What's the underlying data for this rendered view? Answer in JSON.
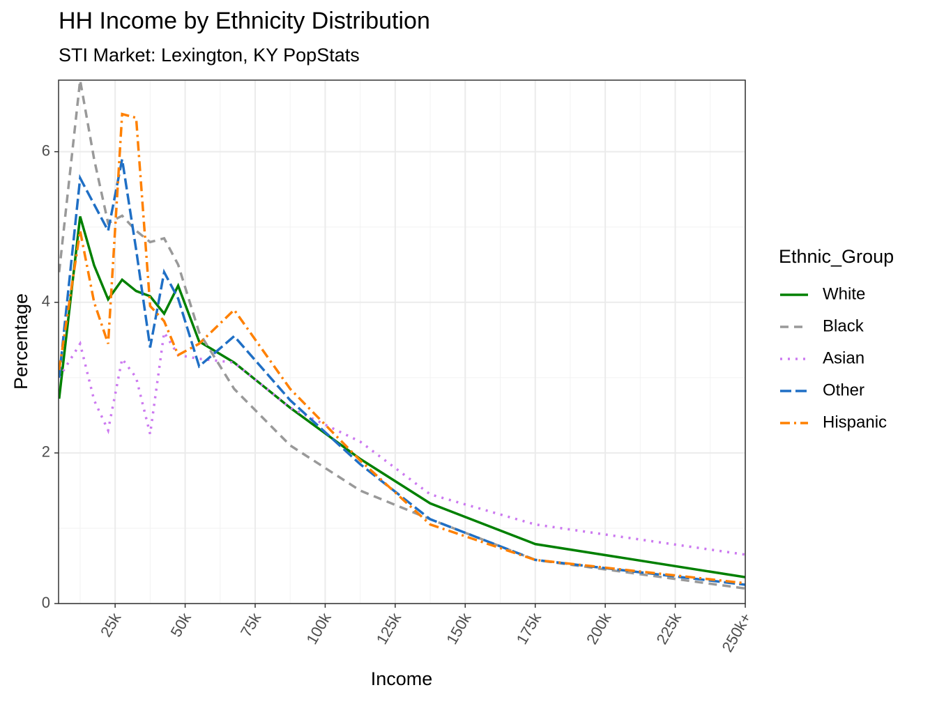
{
  "chart_data": {
    "type": "line",
    "title": "HH Income by Ethnicity Distribution",
    "subtitle": "STI Market: Lexington, KY PopStats",
    "x_label": "Income",
    "y_label": "Percentage",
    "legend_title": "Ethnic_Group",
    "legend_position": "right",
    "grid": true,
    "x": [
      5,
      12.5,
      17.5,
      22.5,
      27.5,
      32.5,
      37.5,
      42.5,
      47.5,
      55,
      67.5,
      87.5,
      112.5,
      137.5,
      175,
      250
    ],
    "xlim": [
      4.8,
      250
    ],
    "ylim": [
      0,
      6.95
    ],
    "xticks": [
      {
        "value": 25,
        "label": "25k"
      },
      {
        "value": 50,
        "label": "50k"
      },
      {
        "value": 75,
        "label": "75k"
      },
      {
        "value": 100,
        "label": "100k"
      },
      {
        "value": 125,
        "label": "125k"
      },
      {
        "value": 150,
        "label": "150k"
      },
      {
        "value": 175,
        "label": "175k"
      },
      {
        "value": 200,
        "label": "200k"
      },
      {
        "value": 225,
        "label": "225k"
      },
      {
        "value": 250,
        "label": "250k+"
      }
    ],
    "yticks": [
      0,
      2,
      4,
      6
    ],
    "series": [
      {
        "name": "White",
        "color": "#008000",
        "linetype": "solid",
        "values": [
          2.72,
          5.14,
          4.49,
          4.04,
          4.3,
          4.15,
          4.08,
          3.85,
          4.22,
          3.48,
          3.2,
          2.6,
          1.92,
          1.33,
          0.79,
          0.35
        ]
      },
      {
        "name": "Black",
        "color": "#999999",
        "linetype": "dashed",
        "values": [
          4.4,
          6.95,
          5.9,
          5.05,
          5.15,
          4.95,
          4.8,
          4.85,
          4.5,
          3.6,
          2.85,
          2.1,
          1.5,
          1.12,
          0.58,
          0.2
        ]
      },
      {
        "name": "Asian",
        "color": "#cc79f0",
        "linetype": "dotted",
        "values": [
          3.0,
          3.45,
          2.7,
          2.3,
          3.25,
          3.0,
          2.25,
          3.6,
          3.3,
          3.25,
          3.2,
          2.6,
          2.15,
          1.45,
          1.05,
          0.65
        ]
      },
      {
        "name": "Other",
        "color": "#1f6fc5",
        "linetype": "longdash",
        "values": [
          3.0,
          5.65,
          5.3,
          4.95,
          5.9,
          4.7,
          3.4,
          4.4,
          4.05,
          3.15,
          3.55,
          2.7,
          1.85,
          1.12,
          0.58,
          0.25
        ]
      },
      {
        "name": "Hispanic",
        "color": "#ff8000",
        "linetype": "dotdash",
        "values": [
          3.1,
          4.95,
          4.0,
          3.45,
          6.5,
          6.45,
          3.95,
          3.75,
          3.3,
          3.45,
          3.9,
          2.85,
          1.9,
          1.05,
          0.58,
          0.27
        ]
      }
    ]
  }
}
